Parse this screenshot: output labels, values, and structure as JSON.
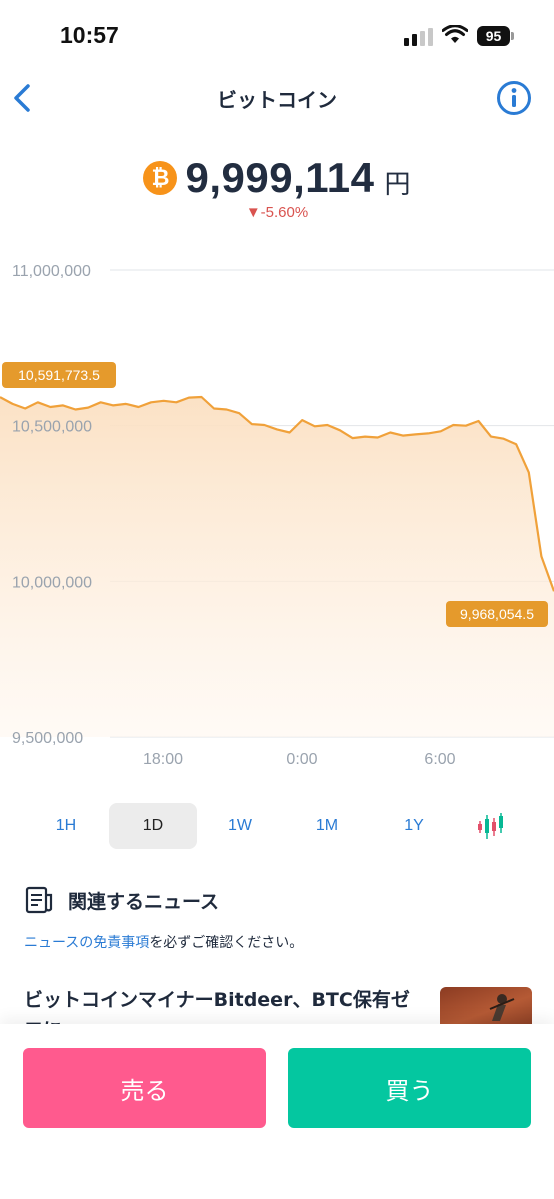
{
  "status_bar": {
    "time": "10:57",
    "battery": "95"
  },
  "header": {
    "title": "ビットコイン",
    "back_icon": "chevron-left-icon",
    "info_icon": "info-icon"
  },
  "price": {
    "value": "9,999,114",
    "unit": "円",
    "change": "▼-5.60%",
    "change_color": "#d9534f",
    "coin_symbol": "₿"
  },
  "chart_data": {
    "type": "area",
    "title": "",
    "xlabel": "",
    "ylabel": "",
    "ylim": [
      9500000,
      11000000
    ],
    "y_ticks": [
      "11,000,000",
      "10,500,000",
      "10,000,000",
      "9,500,000"
    ],
    "x_ticks": [
      "18:00",
      "0:00",
      "6:00"
    ],
    "grid": true,
    "line_color": "#f0a13a",
    "high_label": "10,591,773.5",
    "low_label": "9,968,054.5",
    "series": [
      {
        "values": [
          10591773,
          10570000,
          10555000,
          10575000,
          10560000,
          10565000,
          10552000,
          10558000,
          10575000,
          10565000,
          10570000,
          10560000,
          10575000,
          10580000,
          10575000,
          10590000,
          10592000,
          10555000,
          10552000,
          10540000,
          10505000,
          10502000,
          10488000,
          10478000,
          10518000,
          10498000,
          10502000,
          10485000,
          10460000,
          10465000,
          10462000,
          10478000,
          10468000,
          10472000,
          10475000,
          10482000,
          10502000,
          10500000,
          10515000,
          10465000,
          10458000,
          10440000,
          10350000,
          10080000,
          9968054
        ]
      }
    ]
  },
  "ranges": {
    "items": [
      "1H",
      "1D",
      "1W",
      "1M",
      "1Y"
    ],
    "active": "1D",
    "chart_type_icon": "candlestick-icon"
  },
  "news": {
    "heading": "関連するニュース",
    "disclaimer_link": "ニュースの免責事項",
    "disclaimer_rest": "を必ずご確認ください。",
    "item_title": "ビットコインマイナーBitdeer、BTC保有ゼロに"
  },
  "actions": {
    "sell": "売る",
    "buy": "買う",
    "sell_color": "#ff5a8e",
    "buy_color": "#04c7a0"
  }
}
